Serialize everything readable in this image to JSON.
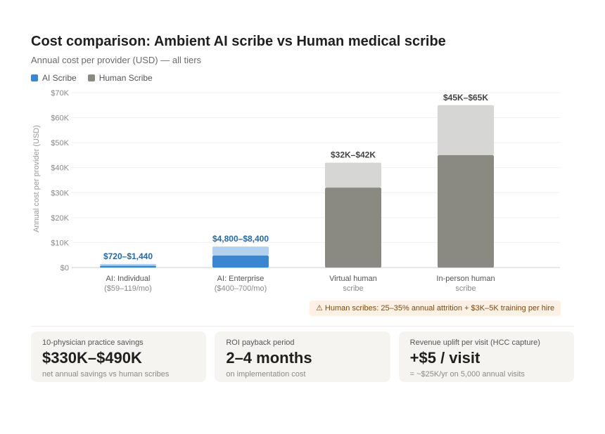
{
  "header": {
    "title": "Cost comparison: Ambient AI scribe vs Human medical scribe",
    "subtitle": "Annual cost per provider (USD) — all tiers"
  },
  "legend": {
    "items": [
      {
        "label": "AI Scribe",
        "color": "#3a86d0"
      },
      {
        "label": "Human Scribe",
        "color": "#8a8a82"
      }
    ]
  },
  "chart_data": {
    "type": "bar",
    "stacked_range": true,
    "ylabel": "Annual cost per provider (USD)",
    "ylim": [
      0,
      70000
    ],
    "yticks": [
      {
        "value": 0,
        "label": "$0"
      },
      {
        "value": 10000,
        "label": "$10K"
      },
      {
        "value": 20000,
        "label": "$20K"
      },
      {
        "value": 30000,
        "label": "$30K"
      },
      {
        "value": 40000,
        "label": "$40K"
      },
      {
        "value": 50000,
        "label": "$50K"
      },
      {
        "value": 60000,
        "label": "$60K"
      },
      {
        "value": 70000,
        "label": "$70K"
      }
    ],
    "grid": true,
    "categories": [
      {
        "name": "AI: Individual",
        "sub": "($59–119/mo)",
        "series": "AI Scribe",
        "low": 720,
        "high": 1440,
        "range_label": "$720–$1,440",
        "base_color": "#3a86d0",
        "range_color": "#b3d1ef",
        "label_color": "#2468a8"
      },
      {
        "name": "AI: Enterprise",
        "sub": "($400–700/mo)",
        "series": "AI Scribe",
        "low": 4800,
        "high": 8400,
        "range_label": "$4,800–$8,400",
        "base_color": "#3a86d0",
        "range_color": "#b3d1ef",
        "label_color": "#2468a8"
      },
      {
        "name": "Virtual human",
        "sub": "scribe",
        "series": "Human Scribe",
        "low": 32000,
        "high": 42000,
        "range_label": "$32K–$42K",
        "base_color": "#8a8a82",
        "range_color": "#d6d6d4",
        "label_color": "#444444"
      },
      {
        "name": "In-person human",
        "sub": "scribe",
        "series": "Human Scribe",
        "low": 45000,
        "high": 65000,
        "range_label": "$45K–$65K",
        "base_color": "#8a8a82",
        "range_color": "#d6d6d4",
        "label_color": "#444444"
      }
    ]
  },
  "note": {
    "icon": "warning-icon",
    "text": "⚠ Human scribes: 25–35% annual attrition + $3K–5K training per hire"
  },
  "cards": [
    {
      "label": "10-physician practice savings",
      "value": "$330K–$490K",
      "sub": "net annual savings vs human scribes"
    },
    {
      "label": "ROI payback period",
      "value": "2–4 months",
      "sub": "on implementation cost"
    },
    {
      "label": "Revenue uplift per visit (HCC capture)",
      "value": "+$5 / visit",
      "sub": "= ~$25K/yr on 5,000 annual visits"
    }
  ]
}
